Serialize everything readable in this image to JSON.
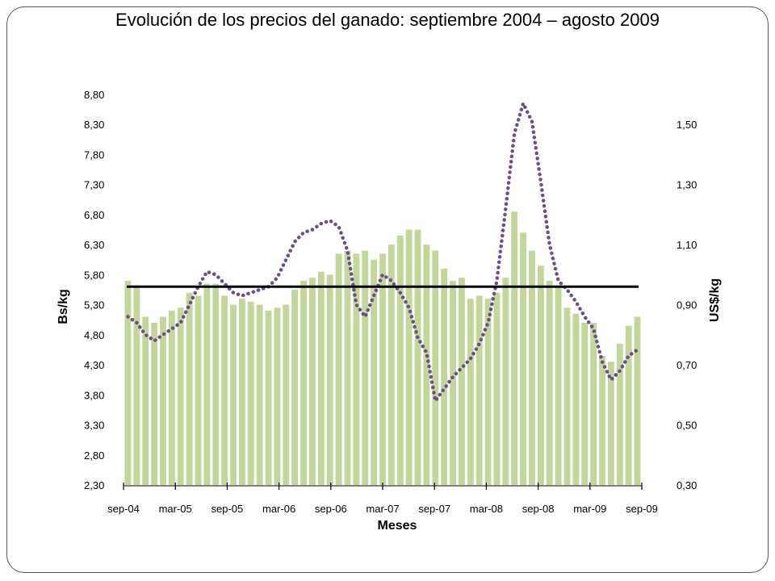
{
  "chart_data": {
    "title": "Evolución de los precios del ganado: septiembre 2004 – agosto 2009",
    "type": "bar+line",
    "xlabel": "Meses",
    "ylabel_left": "Bs/kg",
    "ylabel_right": "US$/kg",
    "ylim_left": [
      2.3,
      8.8
    ],
    "ylim_right": [
      0.3,
      1.6
    ],
    "yticks_left": [
      "2,30",
      "2,80",
      "3,30",
      "3,80",
      "4,30",
      "4,80",
      "5,30",
      "5,80",
      "6,30",
      "6,80",
      "7,30",
      "7,80",
      "8,30",
      "8,80"
    ],
    "yticks_right": [
      "0,30",
      "0,50",
      "0,70",
      "0,90",
      "1,10",
      "1,30",
      "1,50"
    ],
    "yticks_right_values": [
      0.3,
      0.5,
      0.7,
      0.9,
      1.1,
      1.3,
      1.5
    ],
    "xtick_labels": [
      "sep-04",
      "mar-05",
      "sep-05",
      "mar-06",
      "sep-06",
      "mar-07",
      "sep-07",
      "mar-08",
      "sep-08",
      "mar-09",
      "sep-09"
    ],
    "grid": false,
    "legend": "none",
    "colors": {
      "bars": "#c4d79b",
      "line": "#6b4e8c",
      "reference": "#000000"
    },
    "series": [
      {
        "type": "bar",
        "axis": "left",
        "values": [
          5.7,
          5.6,
          5.1,
          5.0,
          5.1,
          5.2,
          5.25,
          5.5,
          5.45,
          5.65,
          5.65,
          5.45,
          5.3,
          5.4,
          5.35,
          5.3,
          5.2,
          5.25,
          5.3,
          5.55,
          5.7,
          5.75,
          5.85,
          5.8,
          6.15,
          6.2,
          6.15,
          6.2,
          6.05,
          6.15,
          6.3,
          6.45,
          6.55,
          6.55,
          6.3,
          6.2,
          5.9,
          5.7,
          5.75,
          5.4,
          5.45,
          5.4,
          5.5,
          5.75,
          6.85,
          6.5,
          6.2,
          5.95,
          5.7,
          5.6,
          5.25,
          5.15,
          5.0,
          5.0,
          4.45,
          4.35,
          4.65,
          4.95,
          5.1
        ]
      },
      {
        "type": "line",
        "style": "dotted",
        "axis": "right",
        "values": [
          0.86,
          0.84,
          0.8,
          0.78,
          0.8,
          0.82,
          0.84,
          0.9,
          0.96,
          1.01,
          1.0,
          0.97,
          0.94,
          0.93,
          0.94,
          0.95,
          0.96,
          0.99,
          1.05,
          1.11,
          1.14,
          1.15,
          1.17,
          1.18,
          1.16,
          1.08,
          0.9,
          0.86,
          0.93,
          1.0,
          0.98,
          0.94,
          0.89,
          0.79,
          0.74,
          0.58,
          0.62,
          0.66,
          0.69,
          0.72,
          0.77,
          0.84,
          0.98,
          1.22,
          1.47,
          1.57,
          1.51,
          1.31,
          1.1,
          0.98,
          0.95,
          0.91,
          0.86,
          0.82,
          0.71,
          0.65,
          0.68,
          0.73,
          0.75
        ]
      },
      {
        "type": "reference-line",
        "axis": "left",
        "values": [
          5.6
        ]
      }
    ]
  }
}
